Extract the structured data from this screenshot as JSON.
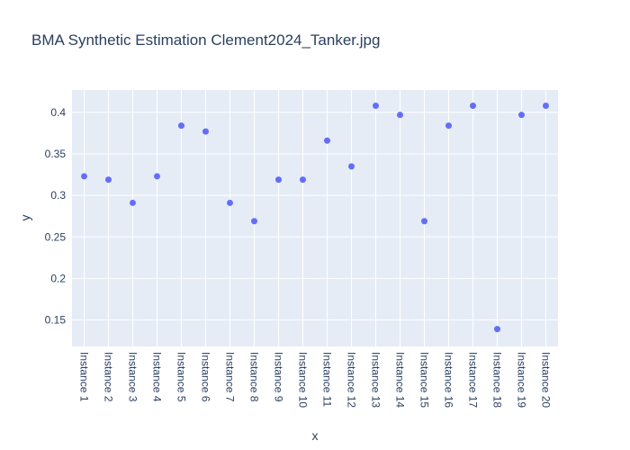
{
  "chart_data": {
    "type": "scatter",
    "title": "BMA Synthetic Estimation Clement2024_Tanker.jpg",
    "xlabel": "x",
    "ylabel": "y",
    "categories": [
      "Instance 1",
      "Instance 2",
      "Instance 3",
      "Instance 4",
      "Instance 5",
      "Instance 6",
      "Instance 7",
      "Instance 8",
      "Instance 9",
      "Instance 10",
      "Instance 11",
      "Instance 12",
      "Instance 13",
      "Instance 14",
      "Instance 15",
      "Instance 16",
      "Instance 17",
      "Instance 18",
      "Instance 19",
      "Instance 20"
    ],
    "values": [
      0.323,
      0.319,
      0.291,
      0.323,
      0.384,
      0.377,
      0.291,
      0.269,
      0.319,
      0.319,
      0.366,
      0.335,
      0.408,
      0.397,
      0.269,
      0.384,
      0.408,
      0.139,
      0.397,
      0.408
    ],
    "ylim": [
      0.118,
      0.427
    ],
    "yticks": [
      0.15,
      0.2,
      0.25,
      0.3,
      0.35,
      0.4
    ],
    "ytick_labels": [
      "0.15",
      "0.2",
      "0.25",
      "0.3",
      "0.35",
      "0.4"
    ],
    "grid": true,
    "colors": {
      "marker": "#636efa",
      "plot_bg": "#e5ecf6",
      "grid": "#ffffff",
      "text": "#2a3f5f"
    }
  }
}
